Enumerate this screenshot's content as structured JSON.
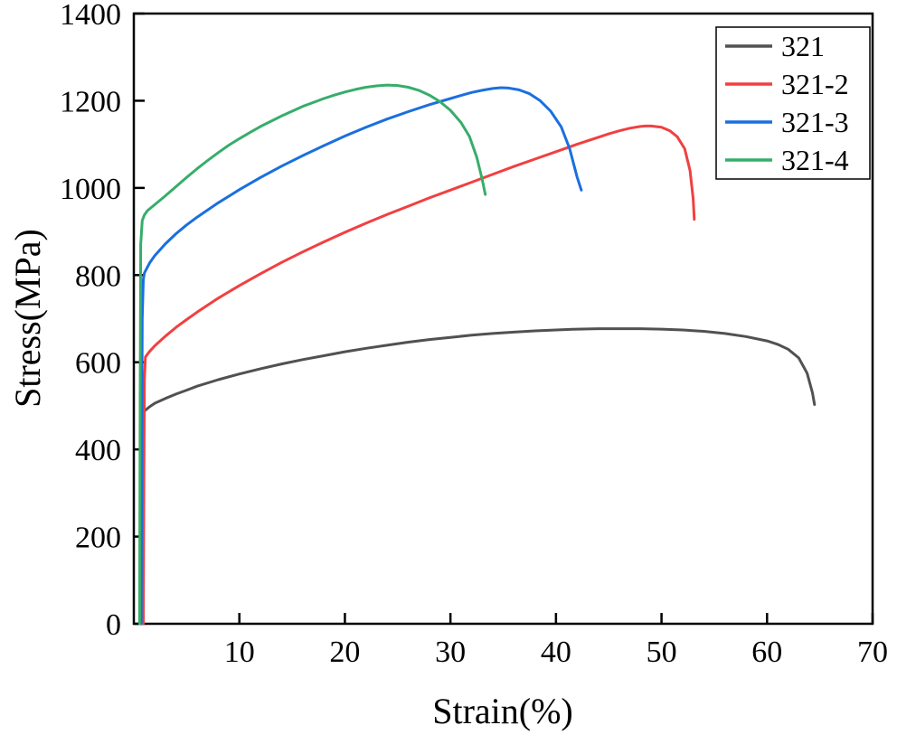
{
  "chart_data": {
    "type": "line",
    "title": "",
    "xlabel": "Strain(%)",
    "ylabel": "Stress(MPa)",
    "xlim": [
      0,
      70
    ],
    "ylim": [
      0,
      1400
    ],
    "x_ticks": [
      10,
      20,
      30,
      40,
      50,
      60,
      70
    ],
    "y_ticks": [
      0,
      200,
      400,
      600,
      800,
      1000,
      1200,
      1400
    ],
    "grid": false,
    "legend_position": "top-right",
    "series": [
      {
        "name": "321",
        "color": "#515151",
        "points": [
          [
            0.8,
            0
          ],
          [
            0.85,
            300
          ],
          [
            0.9,
            455
          ],
          [
            1.0,
            488
          ],
          [
            1.5,
            498
          ],
          [
            2,
            506
          ],
          [
            3,
            517
          ],
          [
            4,
            527
          ],
          [
            5,
            536
          ],
          [
            6,
            545
          ],
          [
            8,
            560
          ],
          [
            10,
            573
          ],
          [
            12,
            585
          ],
          [
            14,
            596
          ],
          [
            16,
            606
          ],
          [
            18,
            615
          ],
          [
            20,
            624
          ],
          [
            22,
            632
          ],
          [
            24,
            639
          ],
          [
            26,
            646
          ],
          [
            28,
            652
          ],
          [
            30,
            657
          ],
          [
            32,
            662
          ],
          [
            34,
            666
          ],
          [
            36,
            669
          ],
          [
            38,
            672
          ],
          [
            40,
            674
          ],
          [
            42,
            676
          ],
          [
            44,
            677
          ],
          [
            46,
            677
          ],
          [
            48,
            677
          ],
          [
            50,
            676
          ],
          [
            52,
            674
          ],
          [
            54,
            671
          ],
          [
            56,
            666
          ],
          [
            58,
            659
          ],
          [
            60,
            649
          ],
          [
            61,
            641
          ],
          [
            62,
            630
          ],
          [
            63,
            610
          ],
          [
            63.8,
            575
          ],
          [
            64.3,
            530
          ],
          [
            64.5,
            503
          ]
        ]
      },
      {
        "name": "321-2",
        "color": "#F14040",
        "points": [
          [
            0.9,
            0
          ],
          [
            0.95,
            320
          ],
          [
            1.0,
            560
          ],
          [
            1.1,
            612
          ],
          [
            1.5,
            625
          ],
          [
            2,
            638
          ],
          [
            3,
            660
          ],
          [
            4,
            680
          ],
          [
            5,
            698
          ],
          [
            6,
            715
          ],
          [
            8,
            747
          ],
          [
            10,
            776
          ],
          [
            12,
            803
          ],
          [
            14,
            829
          ],
          [
            16,
            853
          ],
          [
            18,
            876
          ],
          [
            20,
            898
          ],
          [
            22,
            919
          ],
          [
            24,
            939
          ],
          [
            26,
            958
          ],
          [
            28,
            977
          ],
          [
            30,
            995
          ],
          [
            32,
            1013
          ],
          [
            34,
            1031
          ],
          [
            36,
            1049
          ],
          [
            38,
            1066
          ],
          [
            40,
            1083
          ],
          [
            42,
            1100
          ],
          [
            44,
            1116
          ],
          [
            45,
            1124
          ],
          [
            46,
            1131
          ],
          [
            47,
            1137
          ],
          [
            48,
            1141
          ],
          [
            48.5,
            1142
          ],
          [
            49,
            1142
          ],
          [
            50,
            1139
          ],
          [
            50.8,
            1131
          ],
          [
            51.5,
            1117
          ],
          [
            52.2,
            1090
          ],
          [
            52.7,
            1040
          ],
          [
            53.0,
            975
          ],
          [
            53.1,
            928
          ]
        ]
      },
      {
        "name": "321-3",
        "color": "#1A6FDF",
        "points": [
          [
            0.7,
            0
          ],
          [
            0.75,
            420
          ],
          [
            0.8,
            700
          ],
          [
            0.9,
            790
          ],
          [
            1.0,
            805
          ],
          [
            1.5,
            828
          ],
          [
            2,
            845
          ],
          [
            3,
            872
          ],
          [
            4,
            895
          ],
          [
            5,
            915
          ],
          [
            6,
            933
          ],
          [
            8,
            966
          ],
          [
            10,
            996
          ],
          [
            12,
            1024
          ],
          [
            14,
            1050
          ],
          [
            16,
            1074
          ],
          [
            18,
            1097
          ],
          [
            20,
            1119
          ],
          [
            22,
            1139
          ],
          [
            24,
            1158
          ],
          [
            26,
            1175
          ],
          [
            28,
            1191
          ],
          [
            30,
            1205
          ],
          [
            31,
            1212
          ],
          [
            32,
            1219
          ],
          [
            33,
            1224
          ],
          [
            34,
            1228
          ],
          [
            34.8,
            1230
          ],
          [
            35.5,
            1229
          ],
          [
            36.5,
            1225
          ],
          [
            37.5,
            1216
          ],
          [
            38.5,
            1200
          ],
          [
            39.5,
            1176
          ],
          [
            40.5,
            1140
          ],
          [
            41.3,
            1090
          ],
          [
            42,
            1025
          ],
          [
            42.4,
            995
          ]
        ]
      },
      {
        "name": "321-4",
        "color": "#37AD6B",
        "points": [
          [
            0.55,
            0
          ],
          [
            0.6,
            520
          ],
          [
            0.65,
            870
          ],
          [
            0.8,
            925
          ],
          [
            1.0,
            938
          ],
          [
            1.3,
            948
          ],
          [
            1.8,
            958
          ],
          [
            2.5,
            972
          ],
          [
            3,
            982
          ],
          [
            4,
            1003
          ],
          [
            5,
            1024
          ],
          [
            6,
            1044
          ],
          [
            7,
            1063
          ],
          [
            8,
            1081
          ],
          [
            9,
            1098
          ],
          [
            10,
            1113
          ],
          [
            11,
            1127
          ],
          [
            12,
            1141
          ],
          [
            13,
            1153
          ],
          [
            14,
            1165
          ],
          [
            15,
            1176
          ],
          [
            16,
            1187
          ],
          [
            17,
            1196
          ],
          [
            18,
            1205
          ],
          [
            19,
            1213
          ],
          [
            20,
            1220
          ],
          [
            21,
            1226
          ],
          [
            22,
            1231
          ],
          [
            23,
            1234
          ],
          [
            24,
            1236
          ],
          [
            25,
            1235
          ],
          [
            26,
            1231
          ],
          [
            27,
            1224
          ],
          [
            28,
            1213
          ],
          [
            29,
            1198
          ],
          [
            30,
            1178
          ],
          [
            31,
            1150
          ],
          [
            31.8,
            1118
          ],
          [
            32.5,
            1070
          ],
          [
            33,
            1020
          ],
          [
            33.3,
            985
          ]
        ]
      }
    ]
  }
}
